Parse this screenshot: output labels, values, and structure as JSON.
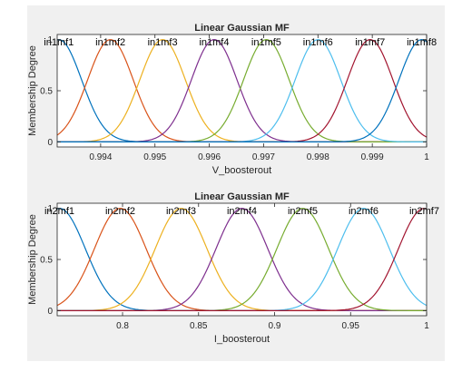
{
  "chart_data": [
    {
      "type": "line",
      "title": "Linear Gaussian MF",
      "xlabel": "V_boosterout",
      "ylabel": "Membership Degree",
      "xlim": [
        0.9932,
        1.0
      ],
      "ylim": [
        -0.05,
        1.05
      ],
      "grid": false,
      "xticks": [
        0.994,
        0.995,
        0.996,
        0.997,
        0.998,
        0.999,
        1.0
      ],
      "xtick_labels": [
        "0.994",
        "0.995",
        "0.996",
        "0.997",
        "0.998",
        "0.999",
        "1"
      ],
      "yticks": [
        0,
        0.5,
        1
      ],
      "ytick_labels": [
        "0",
        "0.5",
        "1"
      ],
      "sigma": 0.00042,
      "series": [
        {
          "name": "in1mf1",
          "center": 0.99323,
          "color": "#0072BD"
        },
        {
          "name": "in1mf2",
          "center": 0.99418,
          "color": "#D95319"
        },
        {
          "name": "in1mf3",
          "center": 0.99514,
          "color": "#EDB120"
        },
        {
          "name": "in1mf4",
          "center": 0.99609,
          "color": "#7E2F8E"
        },
        {
          "name": "in1mf5",
          "center": 0.99705,
          "color": "#77AC30"
        },
        {
          "name": "in1mf6",
          "center": 0.998,
          "color": "#4DBEEE"
        },
        {
          "name": "in1mf7",
          "center": 0.99896,
          "color": "#A2142F"
        },
        {
          "name": "in1mf8",
          "center": 0.99991,
          "color": "#0072BD"
        }
      ]
    },
    {
      "type": "line",
      "title": "Linear Gaussian MF",
      "xlabel": "I_boosterout",
      "ylabel": "Membership Degree",
      "xlim": [
        0.757,
        1.0
      ],
      "ylim": [
        -0.05,
        1.05
      ],
      "grid": false,
      "xticks": [
        0.8,
        0.85,
        0.9,
        0.95,
        1.0
      ],
      "xtick_labels": [
        "0.8",
        "0.85",
        "0.9",
        "0.95",
        "1"
      ],
      "yticks": [
        0,
        0.5,
        1
      ],
      "ytick_labels": [
        "0",
        "0.5",
        "1"
      ],
      "sigma": 0.017,
      "series": [
        {
          "name": "in2mf1",
          "center": 0.7585,
          "color": "#0072BD"
        },
        {
          "name": "in2mf2",
          "center": 0.7985,
          "color": "#D95319"
        },
        {
          "name": "in2mf3",
          "center": 0.8385,
          "color": "#EDB120"
        },
        {
          "name": "in2mf4",
          "center": 0.8785,
          "color": "#7E2F8E"
        },
        {
          "name": "in2mf5",
          "center": 0.9185,
          "color": "#77AC30"
        },
        {
          "name": "in2mf6",
          "center": 0.9585,
          "color": "#4DBEEE"
        },
        {
          "name": "in2mf7",
          "center": 0.9985,
          "color": "#A2142F"
        }
      ]
    }
  ]
}
